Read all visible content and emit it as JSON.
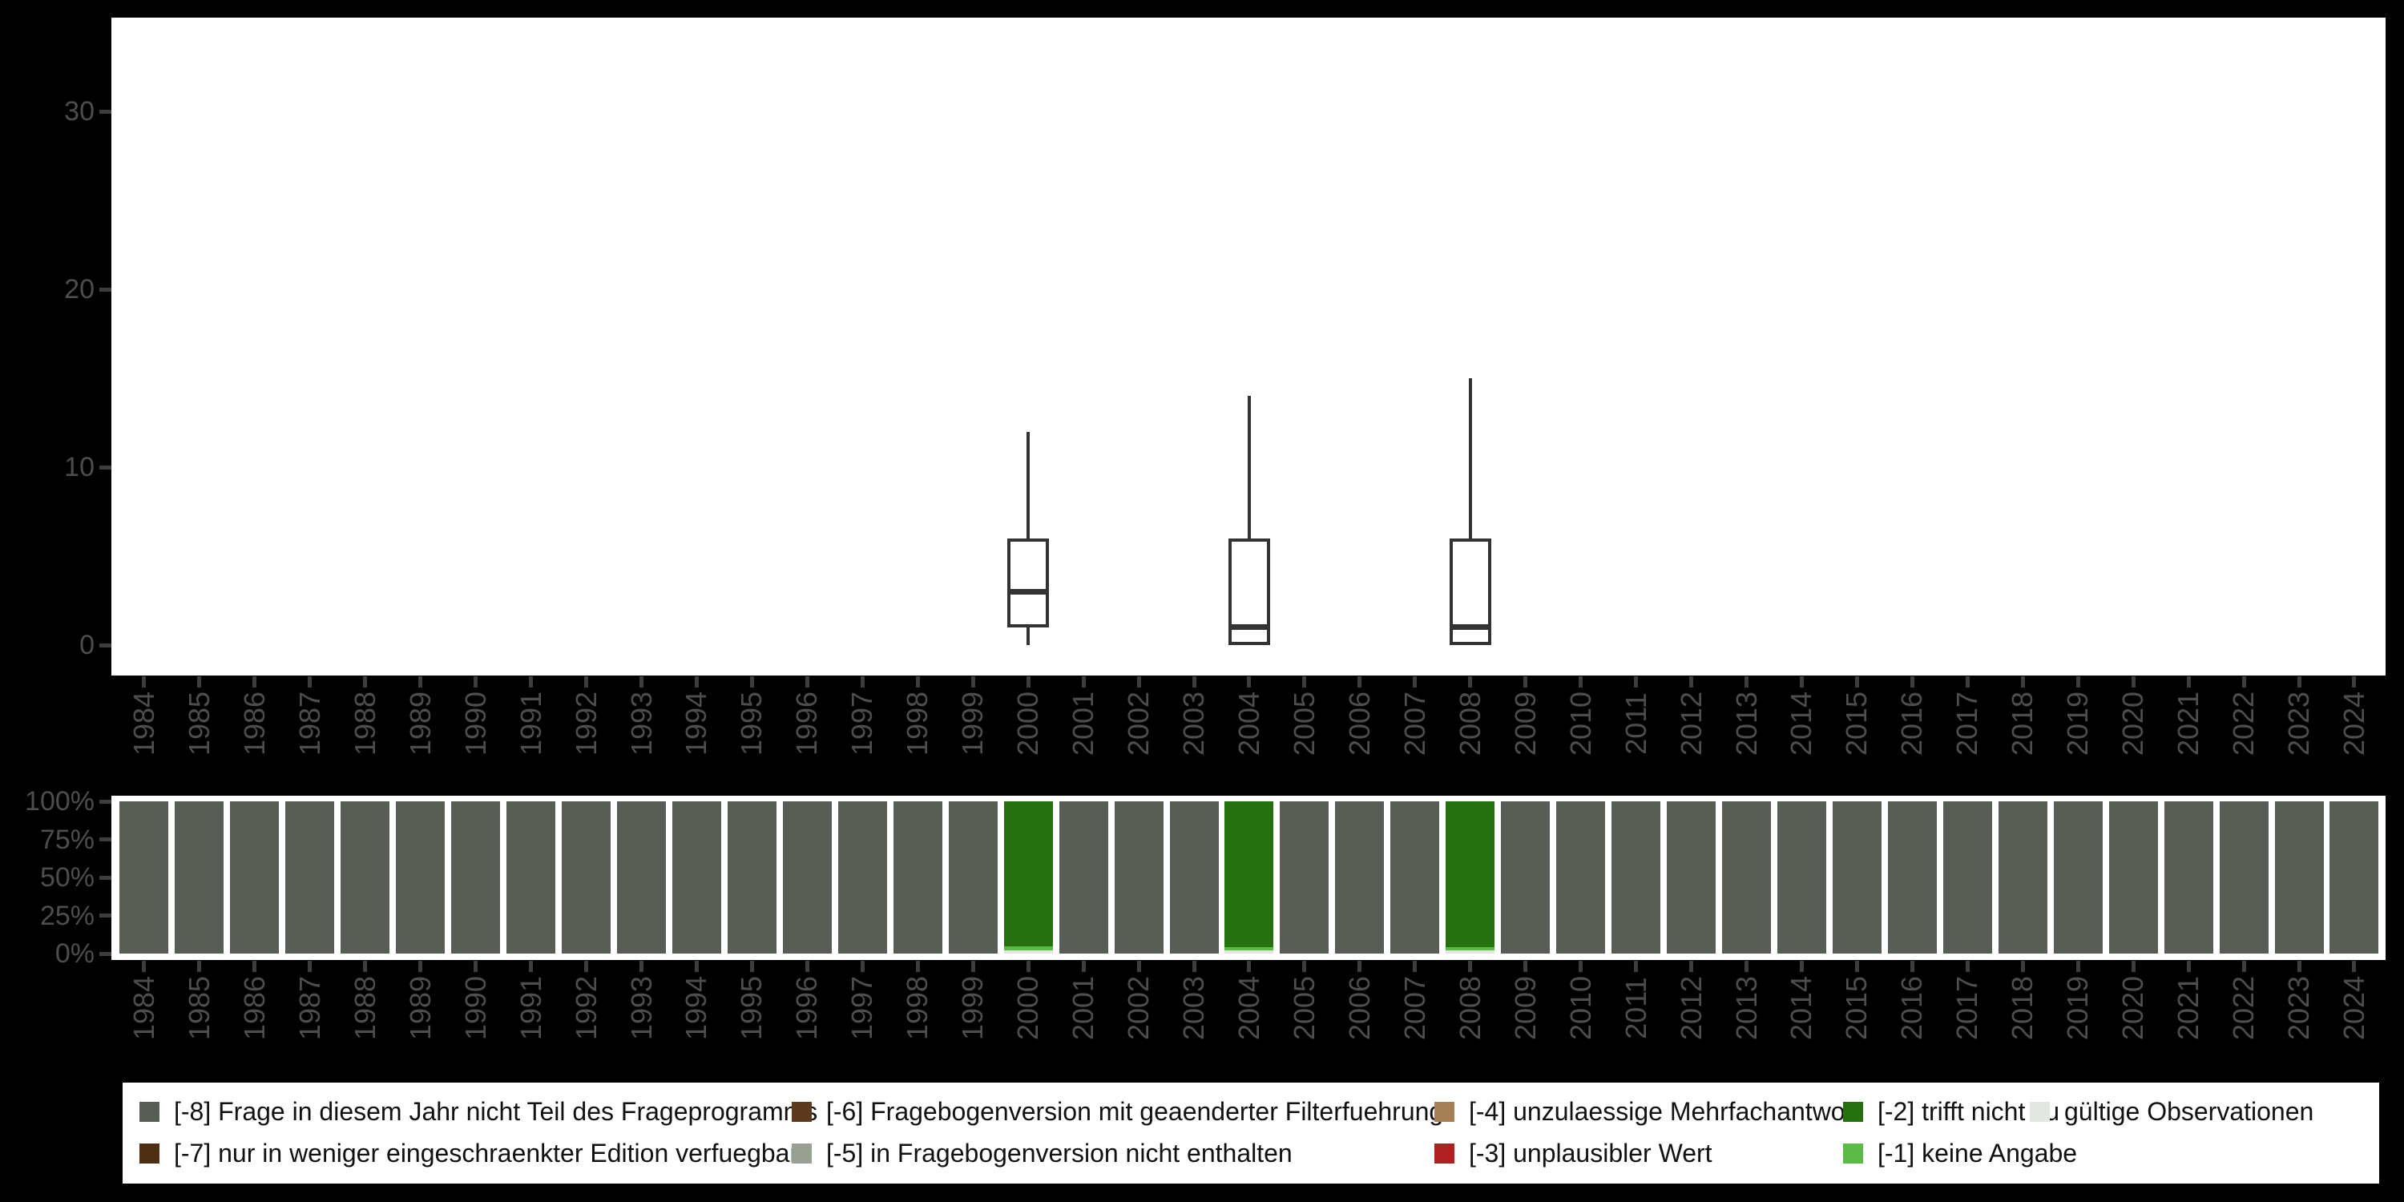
{
  "colors": {
    "background": "#000000",
    "panel": "#ffffff",
    "axis_text": "#4d4d4d",
    "tick": "#3d3d3d",
    "box_stroke": "#333333"
  },
  "chart_data": [
    {
      "type": "boxplot",
      "title": "",
      "xlabel": "",
      "ylabel": "",
      "grid": false,
      "ylim": [
        0,
        35
      ],
      "yticks": [
        0,
        10,
        20,
        30
      ],
      "x_categories": [
        1984,
        1985,
        1986,
        1987,
        1988,
        1989,
        1990,
        1991,
        1992,
        1993,
        1994,
        1995,
        1996,
        1997,
        1998,
        1999,
        2000,
        2001,
        2002,
        2003,
        2004,
        2005,
        2006,
        2007,
        2008,
        2009,
        2010,
        2011,
        2012,
        2013,
        2014,
        2015,
        2016,
        2017,
        2018,
        2019,
        2020,
        2021,
        2022,
        2023,
        2024
      ],
      "boxes": [
        {
          "x": 2000,
          "min": 0,
          "q1": 1,
          "median": 3,
          "q3": 6,
          "max": 12
        },
        {
          "x": 2004,
          "min": 0,
          "q1": 0,
          "median": 1,
          "q3": 6,
          "max": 14
        },
        {
          "x": 2008,
          "min": 0,
          "q1": 0,
          "median": 1,
          "q3": 6,
          "max": 15
        }
      ]
    },
    {
      "type": "bar",
      "subtype": "stacked_percent",
      "title": "",
      "xlabel": "",
      "ylabel": "",
      "grid": false,
      "yticks": [
        {
          "pct": 0,
          "label": "0%"
        },
        {
          "pct": 25,
          "label": "25%"
        },
        {
          "pct": 50,
          "label": "50%"
        },
        {
          "pct": 75,
          "label": "75%"
        },
        {
          "pct": 100,
          "label": "100%"
        }
      ],
      "x_categories": [
        1984,
        1985,
        1986,
        1987,
        1988,
        1989,
        1990,
        1991,
        1992,
        1993,
        1994,
        1995,
        1996,
        1997,
        1998,
        1999,
        2000,
        2001,
        2002,
        2003,
        2004,
        2005,
        2006,
        2007,
        2008,
        2009,
        2010,
        2011,
        2012,
        2013,
        2014,
        2015,
        2016,
        2017,
        2018,
        2019,
        2020,
        2021,
        2022,
        2023,
        2024
      ],
      "default_stack": [
        {
          "code": "-8",
          "pct": 100
        }
      ],
      "stacks": {
        "2000": [
          {
            "code": "valid",
            "pct": 2
          },
          {
            "code": "-1",
            "pct": 3
          },
          {
            "code": "-2",
            "pct": 95
          }
        ],
        "2004": [
          {
            "code": "valid",
            "pct": 2
          },
          {
            "code": "-1",
            "pct": 2
          },
          {
            "code": "-2",
            "pct": 96
          }
        ],
        "2008": [
          {
            "code": "valid",
            "pct": 2
          },
          {
            "code": "-1",
            "pct": 2
          },
          {
            "code": "-2",
            "pct": 96
          }
        ]
      }
    }
  ],
  "legend": {
    "position": "bottom",
    "items": [
      {
        "code": "-8",
        "label": "[-8] Frage in diesem Jahr nicht Teil des Frageprogramms",
        "color": "#575c54"
      },
      {
        "code": "-7",
        "label": "[-7] nur in weniger eingeschraenkter Edition verfuegbar",
        "color": "#4e2f14"
      },
      {
        "code": "-6",
        "label": "[-6] Fragebogenversion mit geaenderter Filterfuehrung",
        "color": "#5c3a1e"
      },
      {
        "code": "-5",
        "label": "[-5] in Fragebogenversion nicht enthalten",
        "color": "#9aa094"
      },
      {
        "code": "-4",
        "label": "[-4] unzulaessige Mehrfachantwort",
        "color": "#a58057"
      },
      {
        "code": "-3",
        "label": "[-3] unplausibler Wert",
        "color": "#b02020"
      },
      {
        "code": "-2",
        "label": "[-2] trifft nicht zu",
        "color": "#26700f"
      },
      {
        "code": "-1",
        "label": "[-1] keine Angabe",
        "color": "#5cba46"
      },
      {
        "code": "valid",
        "label": "gültige Observationen",
        "color": "#e3e7e1"
      }
    ]
  }
}
